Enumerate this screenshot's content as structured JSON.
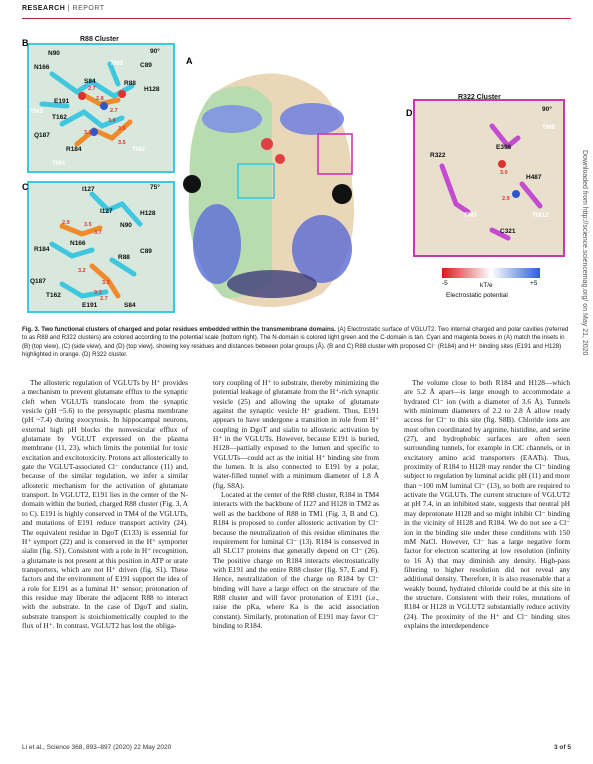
{
  "header": {
    "section": "RESEARCH",
    "separator": "|",
    "type": "REPORT"
  },
  "figure": {
    "panel_b": {
      "letter": "B",
      "title": "R88 Cluster",
      "rotation": "90°",
      "labels": [
        "N90",
        "N166",
        "TM3",
        "C89",
        "S84",
        "R88",
        "H128",
        "E191",
        "TM3",
        "T162",
        "Q187",
        "R184",
        "TM2",
        "TM4"
      ],
      "distances": [
        "2.7",
        "2.8",
        "2.7",
        "3.8",
        "3.5",
        "3.2",
        "3.5"
      ]
    },
    "panel_c": {
      "letter": "C",
      "rotation": "75°",
      "labels": [
        "I127",
        "I127",
        "H128",
        "N90",
        "R184",
        "N166",
        "C89",
        "R88",
        "Q187",
        "T162",
        "E191",
        "S84"
      ],
      "distances": [
        "2.9",
        "3.5",
        "3.7",
        "3.2",
        "3.2",
        "3.3",
        "2.7"
      ]
    },
    "panel_a": {
      "letter": "A"
    },
    "panel_d": {
      "letter": "D",
      "title": "R322 Cluster",
      "rotation": "90°",
      "labels": [
        "E396",
        "TM9",
        "R322",
        "H487",
        "TM7",
        "C321",
        "TM12"
      ],
      "distances": [
        "3.0",
        "2.9"
      ]
    },
    "scale": {
      "min": "-5",
      "unit": "kT/e",
      "max": "+5",
      "label": "Electrostatic potential"
    }
  },
  "caption": {
    "lead": "Fig. 3. Two functional clusters of charged and polar residues embedded within the transmembrane domains.",
    "body": " (A) Electrostatic surface of VGLUT2. Two internal charged and polar cavities (referred to as R88 and R322 clusters) are colored according to the potential scale (bottom right). The N-domain is colored light green and the C-domain is tan. Cyan and magenta boxes in (A) match the insets in (B) (top view), (C) (side view), and (D) (top view), showing key residues and distances between polar groups (Å). (B and C) R88 cluster with proposed Cl⁻ (R184) and H⁺ binding sites (E191 and H128) highlighted in orange. (D) R322 cluster."
  },
  "columns": [
    [
      "The allosteric regulation of VGLUTs by H⁺ provides a mechanism to prevent glutamate efflux to the synaptic cleft when VGLUTs translocate from the synaptic vesicle (pH ~5.6) to the presynaptic plasma membrane (pH ~7.4) during exocytosis. In hippocampal neurons, external high pH blocks the nonvesicular efflux of glutamate by VGLUT expressed on the plasma membrane (11, 23), which limits the potential for toxic excitation and excitotoxicity. Protons act allosterically to gate the VGLUT-associated Cl⁻ conductance (11) and, because of the similar regulation, we infer a similar allosteric mechanism for the activation of glutamate transport. In VGLUT2, E191 lies in the center of the N-domain within the buried, charged R88 cluster (Fig. 3, A to C). E191 is highly conserved in TM4 of the VGLUTs, and mutations of E191 reduce transport activity (24). The equivalent residue in DgoT (E133) is essential for H⁺ symport (22) and is conserved in the H⁺ symporter sialin (fig. S1). Consistent with a role in H⁺ recognition, a glutamate is not present at this position in ATP or urate transporters, which are not H⁺ driven (fig. S1). These factors and the environment of E191 support the idea of a role for E191 as a luminal H⁺ sensor; protonation of this residue may liberate the adjacent R88 to interact with the substrate. In the case of DgoT and sialin, substrate transport is stoichiometrically coupled to the flux of H⁺. In contrast, VGLUT2 has lost the obliga-"
    ],
    [
      "tory coupling of H⁺ to substrate, thereby minimizing the potential leakage of glutamate from the H⁺-rich synaptic vesicle (25) and allowing the uptake of glutamate against the synaptic vesicle H⁺ gradient. Thus, E191 appears to have undergone a transition in role from H⁺ coupling in DgoT and sialin to allosteric activation by H⁺ in the VGLUTs. However, because E191 is buried, H128—partially exposed to the lumen and specific to VGLUTs—could act as the initial H⁺ binding site from the lumen. It is also connected to E191 by a polar, water-filled tunnel with a minimum diameter of 1.8 Å (fig. S8A).",
      "Located at the center of the R88 cluster, R184 in TM4 interacts with the backbone of I127 and H128 in TM2 as well as the backbone of R88 in TM1 (Fig. 3, B and C). R184 is proposed to confer allosteric activation by Cl⁻ because the neutralization of this residue eliminates the requirement for luminal Cl⁻ (13). R184 is conserved in all SLC17 proteins that generally depend on Cl⁻ (26). The positive charge on R184 interacts electrostatically with E191 and the entire R88 cluster (fig. S7, E and F). Hence, neutralization of the charge on R184 by Cl⁻ binding will have a large effect on the structure of the R88 cluster and will favor protonation of E191 (i.e., raise the pKa, where Ka is the acid association constant). Similarly, protonation of E191 may favor Cl⁻ binding to R184."
    ],
    [
      "The volume close to both R184 and H128—which are 5.2 Å apart—is large enough to accommodate a hydrated Cl⁻ ion (with a diameter of 3.6 Å). Tunnels with minimum diameters of 2.2 to 2.8 Å allow ready access for Cl⁻ to this site (fig. S8B). Chloride ions are most often coordinated by arginine, histidine, and serine (27), and hydrophobic surfaces are often seen surrounding tunnels, for example in ClC channels, or in excitatory amino acid transporters (EAATs). Thus, proximity of R184 to H128 may render the Cl⁻ binding subject to regulation by luminal acidic pH (11) and more than ~100 mM luminal Cl⁻ (13), so both are required to activate the VGLUTs. The current structure of VGLUT2 at pH 7.4, in an inhibited state, suggests that neutral pH may deprotonate H128 and so might inhibit Cl⁻ binding in the vicinity of H128 and R184. We do not see a Cl⁻ ion in the binding site under these conditions with 150 mM NaCl. However, Cl⁻ has a large negative form factor for electron scattering at low resolution (infinity to 16 Å) that may diminish any density. High-pass filtering to higher resolution did not reveal any additional density. Therefore, it is also reasonable that a weakly bound, hydrated chloride could be at this site in the structure. Consistent with their roles, mutations of R184 or H128 in VGLUT2 substantially reduce activity (24). The proximity of the H⁺ and Cl⁻ binding sites explains the interdependence"
    ]
  ],
  "footer": {
    "citation": "Li et al., Science 368, 893–897 (2020)     22 May 2020",
    "page": "3 of 5"
  },
  "sidebar": "Downloaded from http://science.sciencemag.org/ on May 21, 2020"
}
